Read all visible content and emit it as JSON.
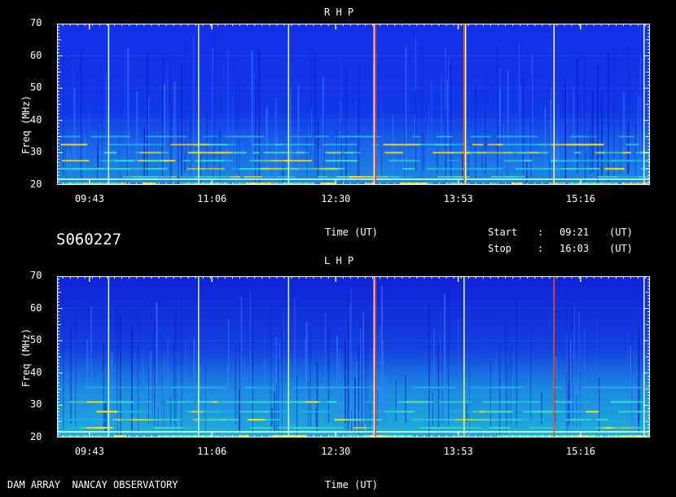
{
  "chart_data": [
    {
      "type": "heatmap",
      "title": "R H P",
      "xlabel": "Time (UT)",
      "ylabel": "Freq (MHz)",
      "ylim": [
        20,
        70
      ],
      "yticks": [
        "20",
        "30",
        "40",
        "50",
        "60",
        "70"
      ],
      "xticks": [
        "09:43",
        "11:06",
        "12:30",
        "13:53",
        "15:16"
      ],
      "xtick_minutes": [
        583,
        666,
        750,
        833,
        916
      ],
      "xlim_minutes": [
        561,
        963
      ],
      "vertical_lines": [
        {
          "time_minutes": 596,
          "color": "#d8ffff"
        },
        {
          "time_minutes": 657,
          "color": "#d8ffff"
        },
        {
          "time_minutes": 718,
          "color": "#d8ffff"
        },
        {
          "time_minutes": 776,
          "color": "#ffe0e0"
        },
        {
          "time_minutes": 777,
          "color": "#ff4000"
        },
        {
          "time_minutes": 837,
          "color": "#ff6000"
        },
        {
          "time_minutes": 838,
          "color": "#ffff80"
        },
        {
          "time_minutes": 898,
          "color": "#ffff80"
        },
        {
          "time_minutes": 959,
          "color": "#d8ffff"
        }
      ],
      "emission_bands": [
        {
          "freq": 20.5,
          "intensity": "high"
        },
        {
          "freq": 22.5,
          "intensity": "medium"
        },
        {
          "freq": 25,
          "intensity": "medium"
        },
        {
          "freq": 27.5,
          "intensity": "medium"
        },
        {
          "freq": 30,
          "intensity": "high"
        },
        {
          "freq": 32.5,
          "intensity": "medium"
        },
        {
          "freq": 35,
          "intensity": "low"
        }
      ]
    },
    {
      "type": "heatmap",
      "title": "L H P",
      "xlabel": "Time (UT)",
      "ylabel": "Freq (MHz)",
      "ylim": [
        20,
        70
      ],
      "yticks": [
        "20",
        "30",
        "40",
        "50",
        "60",
        "70"
      ],
      "xticks": [
        "09:43",
        "11:06",
        "12:30",
        "13:53",
        "15:16"
      ],
      "xtick_minutes": [
        583,
        666,
        750,
        833,
        916
      ],
      "xlim_minutes": [
        561,
        963
      ],
      "vertical_lines": [
        {
          "time_minutes": 596,
          "color": "#d8ffff"
        },
        {
          "time_minutes": 657,
          "color": "#d8ffff"
        },
        {
          "time_minutes": 718,
          "color": "#d8ffff"
        },
        {
          "time_minutes": 776,
          "color": "#ffe0e0"
        },
        {
          "time_minutes": 777,
          "color": "#ff4000"
        },
        {
          "time_minutes": 837,
          "color": "#ffff40"
        },
        {
          "time_minutes": 898,
          "color": "#ff5000"
        },
        {
          "time_minutes": 959,
          "color": "#d8ffff"
        }
      ],
      "emission_bands": [
        {
          "freq": 20.5,
          "intensity": "high"
        },
        {
          "freq": 23,
          "intensity": "medium"
        },
        {
          "freq": 25.5,
          "intensity": "medium"
        },
        {
          "freq": 28,
          "intensity": "medium"
        },
        {
          "freq": 31,
          "intensity": "medium"
        },
        {
          "freq": 35.5,
          "intensity": "low"
        }
      ]
    }
  ],
  "page": {
    "observation_id": "S060227",
    "start_label": "Start",
    "stop_label": "Stop",
    "colon": ":",
    "start_time": "09:21",
    "stop_time": "16:03",
    "ut_unit": "(UT)",
    "footer": "DAM ARRAY  NANCAY OBSERVATORY"
  },
  "colors": {
    "background": "#000000",
    "low": "#0a1ee0",
    "mid": "#19b4e6",
    "high": "#ffe600",
    "peak": "#ff2800",
    "tick": "#ffffff"
  }
}
